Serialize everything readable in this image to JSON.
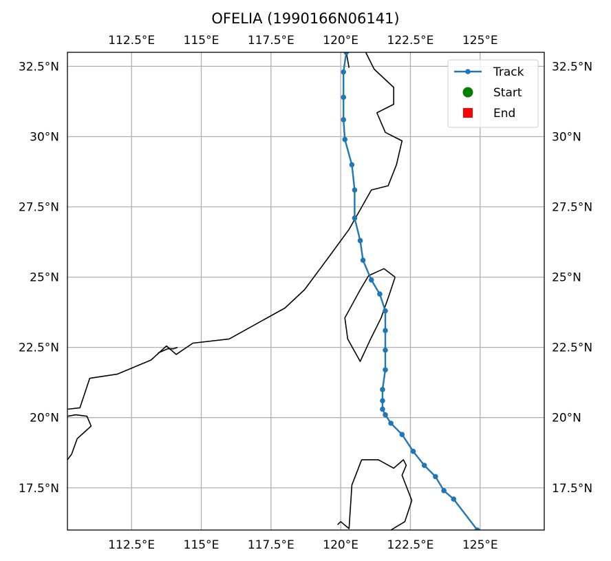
{
  "title": "OFELIA (1990166N06141)",
  "map": {
    "lon_range": [
      110.2,
      127.3
    ],
    "lat_range": [
      16.0,
      33.0
    ],
    "grid": true,
    "lon_ticks": [
      {
        "value": 112.5,
        "label": "112.5°E"
      },
      {
        "value": 115.0,
        "label": "115°E"
      },
      {
        "value": 117.5,
        "label": "117.5°E"
      },
      {
        "value": 120.0,
        "label": "120°E"
      },
      {
        "value": 122.5,
        "label": "122.5°E"
      },
      {
        "value": 125.0,
        "label": "125°E"
      }
    ],
    "lat_ticks": [
      {
        "value": 17.5,
        "label": "17.5°N"
      },
      {
        "value": 20.0,
        "label": "20°N"
      },
      {
        "value": 22.5,
        "label": "22.5°N"
      },
      {
        "value": 25.0,
        "label": "25°N"
      },
      {
        "value": 27.5,
        "label": "27.5°N"
      },
      {
        "value": 30.0,
        "label": "30°N"
      },
      {
        "value": 32.5,
        "label": "32.5°N"
      }
    ],
    "coastlines": [
      [
        [
          110.2,
          20.3
        ],
        [
          110.65,
          20.35
        ],
        [
          111.0,
          21.4
        ],
        [
          112.0,
          21.55
        ],
        [
          113.2,
          22.05
        ],
        [
          113.75,
          22.55
        ],
        [
          114.1,
          22.25
        ],
        [
          114.7,
          22.65
        ],
        [
          116.0,
          22.8
        ],
        [
          117.0,
          23.35
        ],
        [
          118.0,
          23.9
        ],
        [
          118.7,
          24.55
        ],
        [
          119.6,
          25.75
        ],
        [
          120.3,
          26.7
        ],
        [
          121.1,
          28.1
        ],
        [
          121.7,
          28.25
        ],
        [
          122.0,
          29.0
        ],
        [
          122.2,
          29.85
        ],
        [
          121.6,
          30.15
        ],
        [
          121.3,
          30.85
        ],
        [
          121.9,
          31.15
        ],
        [
          121.9,
          31.75
        ],
        [
          121.2,
          32.4
        ],
        [
          120.9,
          33.0
        ]
      ],
      [
        [
          120.2,
          33.0
        ],
        [
          120.3,
          32.45
        ]
      ],
      [
        [
          113.45,
          22.3
        ],
        [
          113.8,
          22.45
        ],
        [
          114.0,
          22.45
        ],
        [
          114.15,
          22.5
        ]
      ],
      [
        [
          110.2,
          20.05
        ],
        [
          110.5,
          20.1
        ],
        [
          110.9,
          20.05
        ],
        [
          111.05,
          19.7
        ],
        [
          110.55,
          19.25
        ],
        [
          110.35,
          18.7
        ],
        [
          110.2,
          18.5
        ]
      ],
      [
        [
          121.95,
          25.0
        ],
        [
          121.55,
          25.3
        ],
        [
          121.0,
          25.05
        ],
        [
          120.7,
          24.55
        ],
        [
          120.15,
          23.55
        ],
        [
          120.25,
          22.8
        ],
        [
          120.7,
          22.0
        ],
        [
          121.05,
          22.75
        ],
        [
          121.45,
          23.55
        ],
        [
          121.75,
          24.4
        ],
        [
          121.95,
          25.0
        ]
      ],
      [
        [
          120.0,
          16.3
        ],
        [
          119.9,
          16.2
        ],
        [
          120.0,
          16.3
        ],
        [
          120.3,
          16.05
        ],
        [
          120.4,
          17.6
        ],
        [
          120.75,
          18.5
        ],
        [
          121.35,
          18.5
        ],
        [
          121.9,
          18.2
        ],
        [
          122.25,
          18.5
        ],
        [
          122.35,
          18.3
        ],
        [
          122.2,
          17.95
        ],
        [
          122.55,
          17.05
        ],
        [
          122.3,
          16.3
        ],
        [
          121.8,
          16.0
        ]
      ]
    ]
  },
  "track": {
    "points": [
      [
        124.9,
        16.0
      ],
      [
        124.05,
        17.1
      ],
      [
        123.7,
        17.4
      ],
      [
        123.4,
        17.9
      ],
      [
        123.0,
        18.3
      ],
      [
        122.6,
        18.8
      ],
      [
        122.2,
        19.4
      ],
      [
        121.8,
        19.8
      ],
      [
        121.6,
        20.1
      ],
      [
        121.5,
        20.3
      ],
      [
        121.5,
        20.6
      ],
      [
        121.5,
        21.0
      ],
      [
        121.6,
        21.7
      ],
      [
        121.6,
        22.4
      ],
      [
        121.6,
        23.1
      ],
      [
        121.6,
        23.8
      ],
      [
        121.4,
        24.4
      ],
      [
        121.1,
        24.9
      ],
      [
        120.8,
        25.6
      ],
      [
        120.7,
        26.3
      ],
      [
        120.5,
        27.1
      ],
      [
        120.5,
        28.1
      ],
      [
        120.4,
        29.0
      ],
      [
        120.15,
        29.9
      ],
      [
        120.1,
        30.6
      ],
      [
        120.1,
        31.4
      ],
      [
        120.1,
        32.3
      ],
      [
        120.2,
        33.0
      ]
    ],
    "color": "#1f77b4"
  },
  "legend": {
    "placement": "upper-right",
    "entries": [
      {
        "label": "Track",
        "color": "#1f77b4",
        "marker": "line-dot"
      },
      {
        "label": "Start",
        "color": "#008000",
        "marker": "circle"
      },
      {
        "label": "End",
        "color": "#ff0000",
        "marker": "square"
      }
    ]
  }
}
